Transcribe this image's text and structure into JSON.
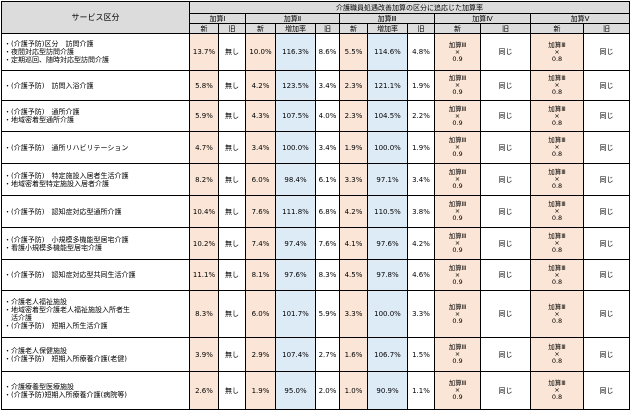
{
  "header": {
    "service_col": "サービス区分",
    "main_title": "介護職員処遇改善加算の区分に追応じた加算率",
    "groups": [
      "加算Ⅰ",
      "加算Ⅱ",
      "加算Ⅲ",
      "加算Ⅳ",
      "加算Ⅴ"
    ],
    "sub": {
      "new": "新",
      "old": "旧",
      "inc": "増加率"
    }
  },
  "formula": {
    "iv": {
      "top": "加算Ⅲ",
      "mid": "×",
      "bot": "0.9"
    },
    "v": {
      "top": "加算Ⅲ",
      "mid": "×",
      "bot": "0.8"
    },
    "same": "同じ"
  },
  "rows": [
    {
      "service": [
        "・(介護予防)区分　訪問介護",
        "・夜間対応型訪問介護",
        "・定期巡回、随時対応型訪問介護"
      ],
      "k1_new": "13.7%",
      "k1_old": "無し",
      "k2_new": "10.0%",
      "k2_inc": "116.3%",
      "k2_old": "8.6%",
      "k3_new": "5.5%",
      "k3_inc": "114.6%",
      "k3_old": "4.8%"
    },
    {
      "service": [
        "・(介護予防)　訪問入浴介護"
      ],
      "k1_new": "5.8%",
      "k1_old": "無し",
      "k2_new": "4.2%",
      "k2_inc": "123.5%",
      "k2_old": "3.4%",
      "k3_new": "2.3%",
      "k3_inc": "121.1%",
      "k3_old": "1.9%"
    },
    {
      "service": [
        "・(介護予防)　通所介護",
        "・地域密着型通所介護"
      ],
      "k1_new": "5.9%",
      "k1_old": "無し",
      "k2_new": "4.3%",
      "k2_inc": "107.5%",
      "k2_old": "4.0%",
      "k3_new": "2.3%",
      "k3_inc": "104.5%",
      "k3_old": "2.2%"
    },
    {
      "service": [
        "・(介護予防)　通所リハビリテーション"
      ],
      "k1_new": "4.7%",
      "k1_old": "無し",
      "k2_new": "3.4%",
      "k2_inc": "100.0%",
      "k2_old": "3.4%",
      "k3_new": "1.9%",
      "k3_inc": "100.0%",
      "k3_old": "1.9%"
    },
    {
      "service": [
        "・(介護予防)　特定施設入居者生活介護",
        "・地域密着型特定施設入居者介護"
      ],
      "k1_new": "8.2%",
      "k1_old": "無し",
      "k2_new": "6.0%",
      "k2_inc": "98.4%",
      "k2_old": "6.1%",
      "k3_new": "3.3%",
      "k3_inc": "97.1%",
      "k3_old": "3.4%"
    },
    {
      "service": [
        "・(介護予防)　認知症対応型通所介護"
      ],
      "k1_new": "10.4%",
      "k1_old": "無し",
      "k2_new": "7.6%",
      "k2_inc": "111.8%",
      "k2_old": "6.8%",
      "k3_new": "4.2%",
      "k3_inc": "110.5%",
      "k3_old": "3.8%"
    },
    {
      "service": [
        "・(介護予防)　小規模多機能型居宅介護",
        "・看護小規模多機能型居宅介護"
      ],
      "k1_new": "10.2%",
      "k1_old": "無し",
      "k2_new": "7.4%",
      "k2_inc": "97.4%",
      "k2_old": "7.6%",
      "k3_new": "4.1%",
      "k3_inc": "97.6%",
      "k3_old": "4.2%"
    },
    {
      "service": [
        "・(介護予防)　認知症対応型共同生活介護"
      ],
      "k1_new": "11.1%",
      "k1_old": "無し",
      "k2_new": "8.1%",
      "k2_inc": "97.6%",
      "k2_old": "8.3%",
      "k3_new": "4.5%",
      "k3_inc": "97.8%",
      "k3_old": "4.6%"
    },
    {
      "service": [
        "・介護老人福祉施設",
        "・地域密着型介護老人福祉施設入所者生",
        "　活介護",
        "・(介護予防)　短期入所生活介護"
      ],
      "k1_new": "8.3%",
      "k1_old": "無し",
      "k2_new": "6.0%",
      "k2_inc": "101.7%",
      "k2_old": "5.9%",
      "k3_new": "3.3%",
      "k3_inc": "100.0%",
      "k3_old": "3.3%"
    },
    {
      "service": [
        "・介護老人保健施設",
        "・(介護予防)　短期入所療養介護(老健)"
      ],
      "k1_new": "3.9%",
      "k1_old": "無し",
      "k2_new": "2.9%",
      "k2_inc": "107.4%",
      "k2_old": "2.7%",
      "k3_new": "1.6%",
      "k3_inc": "106.7%",
      "k3_old": "1.5%"
    },
    {
      "service": [
        "・介護療養型医療施設",
        "・(介護予防)短期入所療養介護(病院等)"
      ],
      "k1_new": "2.6%",
      "k1_old": "無し",
      "k2_new": "1.9%",
      "k2_inc": "95.0%",
      "k2_old": "2.0%",
      "k3_new": "1.0%",
      "k3_inc": "90.9%",
      "k3_old": "1.1%"
    }
  ]
}
